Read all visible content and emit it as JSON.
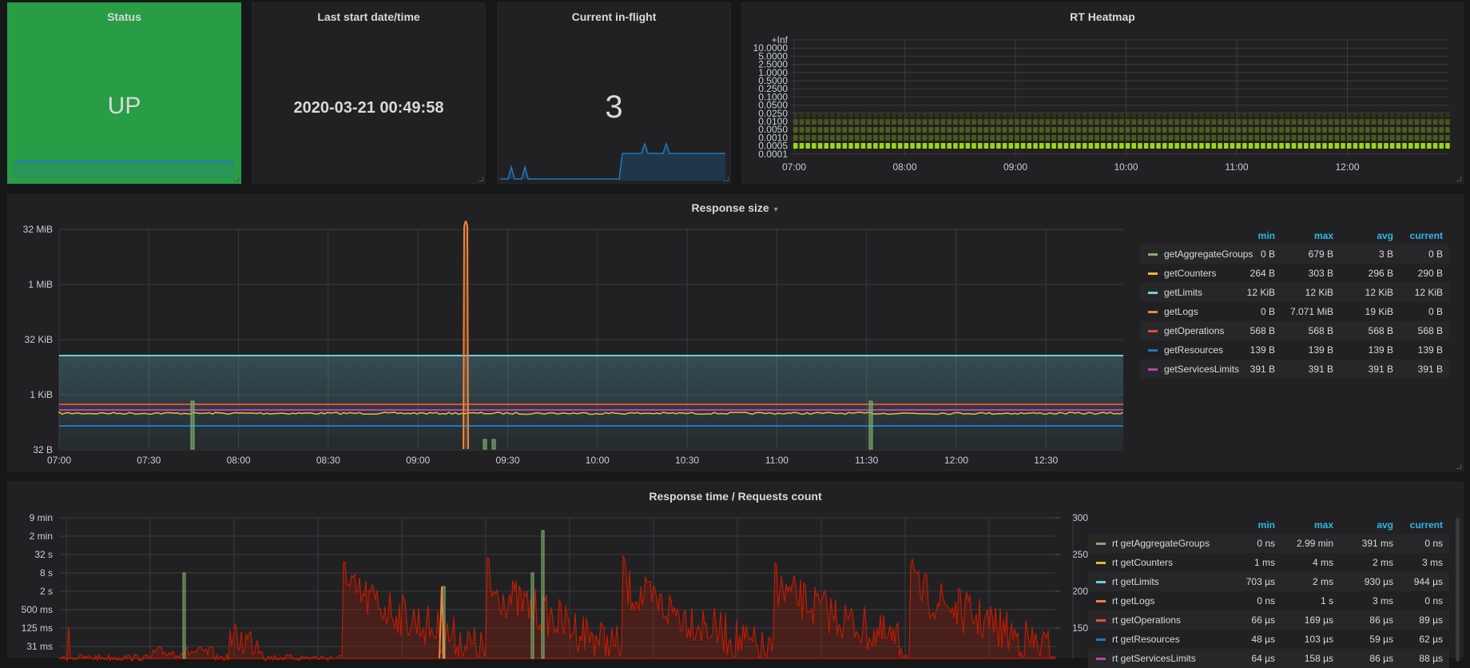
{
  "status": {
    "title": "Status",
    "value": "UP",
    "bg": "#299c46"
  },
  "last_start": {
    "title": "Last start date/time",
    "value": "2020-03-21 00:49:58"
  },
  "inflight": {
    "title": "Current in-flight",
    "value": "3"
  },
  "heatmap": {
    "title": "RT Heatmap",
    "y_labels": [
      "+Inf",
      "10.0000",
      "5.0000",
      "2.5000",
      "1.0000",
      "0.5000",
      "0.2500",
      "0.1000",
      "0.0500",
      "0.0250",
      "0.0100",
      "0.0050",
      "0.0010",
      "0.0005",
      "0.0001"
    ],
    "x_labels": [
      "07:00",
      "08:00",
      "09:00",
      "10:00",
      "11:00",
      "12:00"
    ]
  },
  "response_size": {
    "title": "Response size",
    "y_labels": [
      "32 MiB",
      "1 MiB",
      "32 KiB",
      "1 KiB",
      "32 B"
    ],
    "x_labels": [
      "07:00",
      "07:30",
      "08:00",
      "08:30",
      "09:00",
      "09:30",
      "10:00",
      "10:30",
      "11:00",
      "11:30",
      "12:00",
      "12:30"
    ],
    "legend_headers": {
      "min": "min",
      "max": "max",
      "avg": "avg",
      "current": "current"
    },
    "series": [
      {
        "name": "getAggregateGroups",
        "color": "#7eb26d",
        "min": "0 B",
        "max": "679 B",
        "avg": "3 B",
        "current": "0 B"
      },
      {
        "name": "getCounters",
        "color": "#eab839",
        "min": "264 B",
        "max": "303 B",
        "avg": "296 B",
        "current": "290 B"
      },
      {
        "name": "getLimits",
        "color": "#6ed0e0",
        "min": "12 KiB",
        "max": "12 KiB",
        "avg": "12 KiB",
        "current": "12 KiB"
      },
      {
        "name": "getLogs",
        "color": "#ef843c",
        "min": "0 B",
        "max": "7.071 MiB",
        "avg": "19 KiB",
        "current": "0 B"
      },
      {
        "name": "getOperations",
        "color": "#e24d42",
        "min": "568 B",
        "max": "568 B",
        "avg": "568 B",
        "current": "568 B"
      },
      {
        "name": "getResources",
        "color": "#1f78c1",
        "min": "139 B",
        "max": "139 B",
        "avg": "139 B",
        "current": "139 B"
      },
      {
        "name": "getServicesLimits",
        "color": "#ba43a9",
        "min": "391 B",
        "max": "391 B",
        "avg": "391 B",
        "current": "391 B"
      }
    ]
  },
  "response_time": {
    "title": "Response time / Requests count",
    "y_labels": [
      "9 min",
      "2 min",
      "32 s",
      "8 s",
      "2 s",
      "500 ms",
      "125 ms",
      "31 ms"
    ],
    "y2_labels": [
      "300",
      "250",
      "200",
      "150"
    ],
    "legend_headers": {
      "min": "min",
      "max": "max",
      "avg": "avg",
      "current": "current"
    },
    "series": [
      {
        "name": "rt getAggregateGroups",
        "color": "#7eb26d",
        "min": "0 ns",
        "max": "2.99 min",
        "avg": "391 ms",
        "current": "0 ns"
      },
      {
        "name": "rt getCounters",
        "color": "#eab839",
        "min": "1 ms",
        "max": "4 ms",
        "avg": "2 ms",
        "current": "3 ms"
      },
      {
        "name": "rt getLimits",
        "color": "#6ed0e0",
        "min": "703 µs",
        "max": "2 ms",
        "avg": "930 µs",
        "current": "944 µs"
      },
      {
        "name": "rt getLogs",
        "color": "#ef843c",
        "min": "0 ns",
        "max": "1 s",
        "avg": "3 ms",
        "current": "0 ns"
      },
      {
        "name": "rt getOperations",
        "color": "#e24d42",
        "min": "66 µs",
        "max": "169 µs",
        "avg": "86 µs",
        "current": "89 µs"
      },
      {
        "name": "rt getResources",
        "color": "#1f78c1",
        "min": "48 µs",
        "max": "103 µs",
        "avg": "59 µs",
        "current": "62 µs"
      },
      {
        "name": "rt getServicesLimits",
        "color": "#ba43a9",
        "min": "64 µs",
        "max": "158 µs",
        "avg": "86 µs",
        "current": "88 µs"
      }
    ]
  }
}
